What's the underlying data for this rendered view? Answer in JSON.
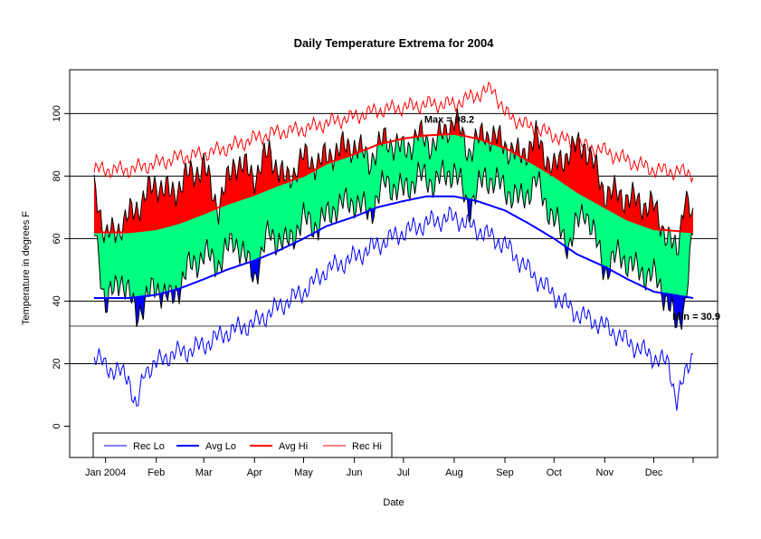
{
  "chart_data": {
    "type": "line",
    "title": "Daily Temperature Extrema for 2004",
    "xlabel": "Date",
    "ylabel": "Temperature in degrees F",
    "x_range": [
      "2003-12-25",
      "2004-12-25"
    ],
    "ylim": [
      -10,
      114
    ],
    "y_ticks": [
      0,
      20,
      40,
      60,
      80,
      100
    ],
    "y_gridlines": [
      20,
      40,
      60,
      80,
      100
    ],
    "x_ticks": [
      {
        "date": "2004-01-01",
        "label": "Jan 2004"
      },
      {
        "date": "2004-02-01",
        "label": "Feb"
      },
      {
        "date": "2004-03-01",
        "label": "Mar"
      },
      {
        "date": "2004-04-01",
        "label": "Apr"
      },
      {
        "date": "2004-05-01",
        "label": "May"
      },
      {
        "date": "2004-06-01",
        "label": "Jun"
      },
      {
        "date": "2004-07-01",
        "label": "Jul"
      },
      {
        "date": "2004-08-01",
        "label": "Aug"
      },
      {
        "date": "2004-09-01",
        "label": "Sep"
      },
      {
        "date": "2004-10-01",
        "label": "Oct"
      },
      {
        "date": "2004-11-01",
        "label": "Nov"
      },
      {
        "date": "2004-12-01",
        "label": "Dec"
      }
    ],
    "reference_lines": [
      {
        "value": 32
      }
    ],
    "annotations": [
      {
        "text": "Max = 98.2",
        "date": "2004-07-29",
        "value": 98.2
      },
      {
        "text": "Min = 30.9",
        "date": "2004-12-17",
        "value": 30.9
      }
    ],
    "legend": {
      "position": "bottom-left",
      "entries": [
        {
          "label": "Rec Lo",
          "color": "#0000ff",
          "line": "thin"
        },
        {
          "label": "Avg Lo",
          "color": "#0000ff",
          "line": "thick"
        },
        {
          "label": "Avg Hi",
          "color": "#ff0000",
          "line": "thick"
        },
        {
          "label": "Rec Hi",
          "color": "#ff0000",
          "line": "thin"
        }
      ]
    },
    "colors": {
      "between_avg": "#00ff80",
      "above_avg_hi": "#ff0000",
      "below_avg_lo": "#0000ff",
      "avg_lo_line": "#0000ff",
      "avg_hi_line": "#ff0000",
      "rec_lo_line": "#0000ff",
      "rec_hi_line": "#ff0000",
      "daily_extrema_outline": "#000000"
    },
    "series": [
      {
        "name": "Rec Lo",
        "dates": [
          "2003-12-26",
          "2004-01-05",
          "2004-01-15",
          "2004-01-20",
          "2004-01-25",
          "2004-02-01",
          "2004-02-10",
          "2004-02-20",
          "2004-03-01",
          "2004-03-15",
          "2004-04-01",
          "2004-04-15",
          "2004-05-01",
          "2004-05-15",
          "2004-06-01",
          "2004-06-15",
          "2004-07-01",
          "2004-07-15",
          "2004-08-01",
          "2004-08-15",
          "2004-09-01",
          "2004-09-15",
          "2004-10-01",
          "2004-10-15",
          "2004-11-01",
          "2004-11-15",
          "2004-12-01",
          "2004-12-10",
          "2004-12-15",
          "2004-12-25"
        ],
        "values": [
          22,
          18,
          16,
          5,
          18,
          20,
          23,
          24,
          26,
          30,
          33,
          38,
          43,
          50,
          54,
          58,
          62,
          65,
          67,
          63,
          58,
          50,
          42,
          36,
          32,
          27,
          22,
          20,
          8,
          24
        ]
      },
      {
        "name": "Avg Lo",
        "dates": [
          "2003-12-26",
          "2004-01-15",
          "2004-02-01",
          "2004-02-15",
          "2004-03-01",
          "2004-03-15",
          "2004-04-01",
          "2004-04-15",
          "2004-05-01",
          "2004-05-15",
          "2004-06-01",
          "2004-06-15",
          "2004-07-01",
          "2004-07-15",
          "2004-08-01",
          "2004-08-15",
          "2004-09-01",
          "2004-09-15",
          "2004-10-01",
          "2004-10-15",
          "2004-11-01",
          "2004-11-15",
          "2004-12-01",
          "2004-12-25"
        ],
        "values": [
          41,
          41,
          42,
          44,
          47,
          50,
          53,
          56,
          60,
          64,
          67,
          70,
          72,
          73.5,
          73.5,
          72,
          69,
          65,
          60,
          55,
          51,
          47,
          43,
          41
        ]
      },
      {
        "name": "Avg Hi",
        "dates": [
          "2003-12-26",
          "2004-01-15",
          "2004-02-01",
          "2004-02-15",
          "2004-03-01",
          "2004-03-15",
          "2004-04-01",
          "2004-04-15",
          "2004-05-01",
          "2004-05-15",
          "2004-06-01",
          "2004-06-15",
          "2004-07-01",
          "2004-07-15",
          "2004-08-01",
          "2004-08-15",
          "2004-09-01",
          "2004-09-15",
          "2004-10-01",
          "2004-10-15",
          "2004-11-01",
          "2004-11-15",
          "2004-12-01",
          "2004-12-25"
        ],
        "values": [
          62,
          62,
          63,
          65,
          68,
          71,
          74,
          77,
          80,
          84,
          87,
          90,
          92,
          93,
          93.5,
          92,
          89,
          85,
          80,
          75,
          70,
          66,
          63,
          62
        ]
      },
      {
        "name": "Rec Hi",
        "dates": [
          "2003-12-26",
          "2004-01-15",
          "2004-02-01",
          "2004-02-15",
          "2004-03-01",
          "2004-03-15",
          "2004-04-01",
          "2004-04-15",
          "2004-05-01",
          "2004-05-15",
          "2004-06-01",
          "2004-06-15",
          "2004-07-01",
          "2004-07-15",
          "2004-08-01",
          "2004-08-15",
          "2004-08-25",
          "2004-09-01",
          "2004-09-15",
          "2004-10-01",
          "2004-10-15",
          "2004-11-01",
          "2004-11-15",
          "2004-12-01",
          "2004-12-25"
        ],
        "values": [
          82,
          82,
          84,
          86,
          87,
          89,
          92,
          94,
          95,
          97,
          99,
          101,
          102,
          103,
          103,
          106,
          108,
          100,
          96,
          93,
          90,
          88,
          85,
          82,
          81
        ]
      },
      {
        "name": "Daily Hi",
        "dates": [
          "2003-12-26",
          "2004-01-01",
          "2004-01-10",
          "2004-01-20",
          "2004-02-01",
          "2004-02-10",
          "2004-02-20",
          "2004-03-01",
          "2004-03-10",
          "2004-03-20",
          "2004-04-01",
          "2004-04-10",
          "2004-04-20",
          "2004-05-01",
          "2004-05-10",
          "2004-05-20",
          "2004-06-01",
          "2004-06-10",
          "2004-06-20",
          "2004-07-01",
          "2004-07-10",
          "2004-07-20",
          "2004-08-01",
          "2004-08-10",
          "2004-08-20",
          "2004-09-01",
          "2004-09-10",
          "2004-09-20",
          "2004-10-01",
          "2004-10-10",
          "2004-10-20",
          "2004-11-01",
          "2004-11-10",
          "2004-11-20",
          "2004-12-01",
          "2004-12-10",
          "2004-12-15",
          "2004-12-20",
          "2004-12-25"
        ],
        "values": [
          76,
          60,
          64,
          70,
          78,
          74,
          80,
          83,
          70,
          85,
          80,
          88,
          78,
          86,
          84,
          88,
          90,
          85,
          92,
          88,
          93,
          90,
          98.2,
          88,
          94,
          90,
          86,
          92,
          82,
          88,
          90,
          75,
          74,
          72,
          70,
          60,
          55,
          75,
          64
        ]
      },
      {
        "name": "Daily Lo",
        "dates": [
          "2003-12-26",
          "2004-01-01",
          "2004-01-10",
          "2004-01-20",
          "2004-02-01",
          "2004-02-10",
          "2004-02-20",
          "2004-03-01",
          "2004-03-10",
          "2004-03-20",
          "2004-04-01",
          "2004-04-10",
          "2004-04-20",
          "2004-05-01",
          "2004-05-10",
          "2004-05-20",
          "2004-06-01",
          "2004-06-10",
          "2004-06-20",
          "2004-07-01",
          "2004-07-10",
          "2004-07-20",
          "2004-08-01",
          "2004-08-10",
          "2004-08-20",
          "2004-09-01",
          "2004-09-10",
          "2004-09-20",
          "2004-10-01",
          "2004-10-10",
          "2004-10-20",
          "2004-11-01",
          "2004-11-10",
          "2004-11-20",
          "2004-12-01",
          "2004-12-10",
          "2004-12-15",
          "2004-12-20",
          "2004-12-25"
        ],
        "values": [
          62,
          38,
          48,
          36,
          45,
          40,
          50,
          55,
          52,
          60,
          48,
          62,
          58,
          66,
          64,
          70,
          72,
          68,
          78,
          75,
          80,
          78,
          82,
          70,
          80,
          76,
          72,
          78,
          66,
          58,
          70,
          50,
          55,
          50,
          48,
          40,
          30.9,
          40,
          62
        ]
      }
    ]
  }
}
